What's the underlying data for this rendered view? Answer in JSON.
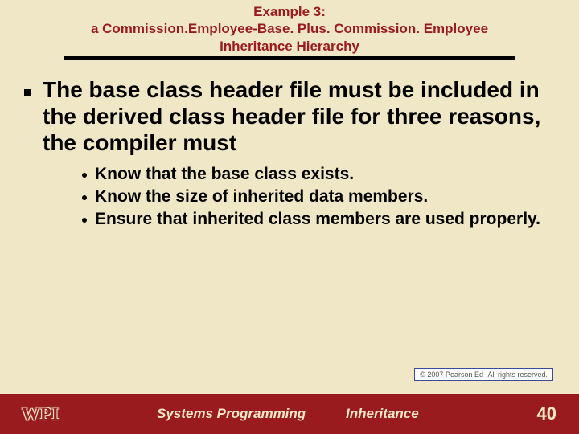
{
  "title": {
    "line1": "Example 3:",
    "line2": "a Commission.Employee-Base. Plus. Commission. Employee",
    "line3": "Inheritance Hierarchy"
  },
  "main_point": "The base class header file must be included in the derived class header file for three reasons, the compiler must",
  "sub_points": [
    "Know that the base class exists.",
    "Know the size of inherited data members.",
    "Ensure that inherited class members are used properly."
  ],
  "copyright": "© 2007 Pearson Ed -All rights reserved.",
  "footer": {
    "logo": "WPI",
    "left": "Systems Programming",
    "mid": "Inheritance",
    "page": "40"
  },
  "colors": {
    "background": "#efe7c6",
    "accent": "#9a1b1e",
    "text": "#000000"
  }
}
